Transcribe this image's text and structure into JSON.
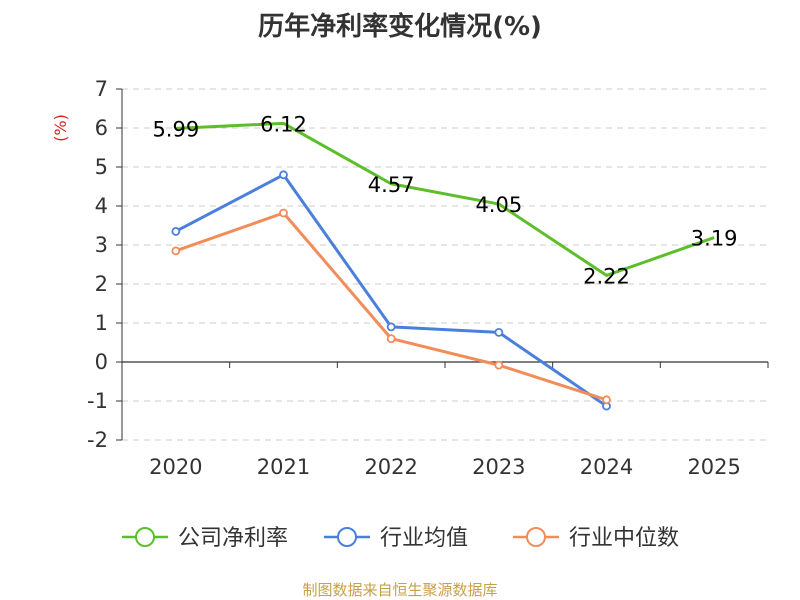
{
  "chart_data": {
    "type": "line",
    "title": "历年净利率变化情况(%)",
    "ylabel": "(%)",
    "source": "制图数据来自恒生聚源数据库",
    "categories": [
      "2020",
      "2021",
      "2022",
      "2023",
      "2024",
      "2025"
    ],
    "ylim": [
      -2,
      7
    ],
    "yticks": [
      "7",
      "6",
      "5",
      "4",
      "3",
      "2",
      "1",
      "0",
      "-1",
      "-2"
    ],
    "grid": true,
    "legend_position": "bottom",
    "series": [
      {
        "name": "公司净利率",
        "color": "#5cbf2a",
        "values": [
          5.99,
          6.12,
          4.57,
          4.05,
          2.22,
          3.19
        ],
        "labels": [
          "5.99",
          "6.12",
          "4.57",
          "4.05",
          "2.22",
          "3.19"
        ],
        "show_markers": false,
        "show_labels": true
      },
      {
        "name": "行业均值",
        "color": "#4a7fdc",
        "values": [
          3.35,
          4.8,
          0.9,
          0.76,
          -1.13,
          null
        ],
        "show_markers": true,
        "show_labels": false
      },
      {
        "name": "行业中位数",
        "color": "#f28c5a",
        "values": [
          2.85,
          3.82,
          0.6,
          -0.08,
          -0.97,
          null
        ],
        "show_markers": true,
        "show_labels": false
      }
    ]
  }
}
